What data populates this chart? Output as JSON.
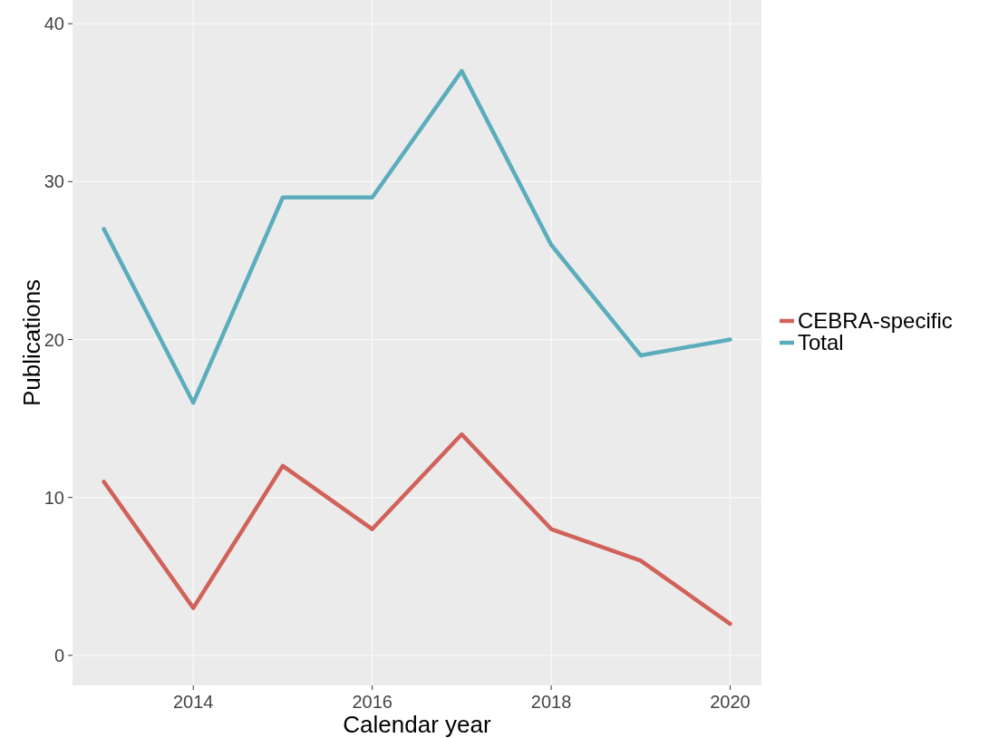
{
  "chart_data": {
    "type": "line",
    "xlabel": "Calendar year",
    "ylabel": "Publications",
    "x": [
      2013,
      2014,
      2015,
      2016,
      2017,
      2018,
      2019,
      2020
    ],
    "series": [
      {
        "name": "CEBRA-specific",
        "color": "#d0625a",
        "values": [
          11,
          3,
          12,
          8,
          14,
          8,
          6,
          2
        ]
      },
      {
        "name": "Total",
        "color": "#5badbd",
        "values": [
          27,
          16,
          29,
          29,
          37,
          26,
          19,
          20
        ]
      }
    ],
    "xlim": [
      2012.65,
      2020.35
    ],
    "xticks": [
      2014,
      2016,
      2018,
      2020
    ],
    "ylim": [
      -1.9,
      41.5
    ],
    "yticks": [
      0,
      10,
      20,
      30,
      40
    ],
    "grid": true,
    "legend": "right",
    "marker": "none",
    "line_style": "solid"
  }
}
